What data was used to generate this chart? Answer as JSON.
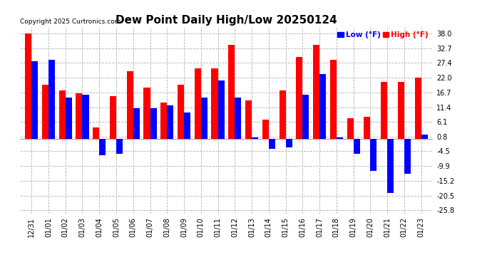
{
  "title": "Dew Point Daily High/Low 20250124",
  "copyright": "Copyright 2025 Curtronics.com",
  "legend_low": "Low (°F)",
  "legend_high": "High (°F)",
  "dates": [
    "12/31",
    "01/01",
    "01/02",
    "01/03",
    "01/04",
    "01/05",
    "01/06",
    "01/07",
    "01/08",
    "01/09",
    "01/10",
    "01/11",
    "01/12",
    "01/13",
    "01/14",
    "01/15",
    "01/16",
    "01/17",
    "01/18",
    "01/19",
    "01/20",
    "01/21",
    "01/22",
    "01/23"
  ],
  "high": [
    38.0,
    19.5,
    17.5,
    16.5,
    4.0,
    15.5,
    24.5,
    18.5,
    13.0,
    19.5,
    25.5,
    25.5,
    34.0,
    14.0,
    7.0,
    17.5,
    29.5,
    34.0,
    28.5,
    7.5,
    8.0,
    20.5,
    20.5,
    22.0
  ],
  "low": [
    28.0,
    28.5,
    15.0,
    16.0,
    -6.0,
    -5.5,
    11.0,
    11.0,
    12.0,
    9.5,
    15.0,
    21.0,
    15.0,
    0.5,
    -3.5,
    -3.0,
    16.0,
    23.5,
    0.5,
    -5.5,
    -11.5,
    -19.5,
    -12.5,
    1.5
  ],
  "ylim": [
    -27.0,
    40.5
  ],
  "yticks": [
    38.0,
    32.7,
    27.4,
    22.0,
    16.7,
    11.4,
    6.1,
    0.8,
    -4.5,
    -9.9,
    -15.2,
    -20.5,
    -25.8
  ],
  "bar_width": 0.38,
  "high_color": "#ff0000",
  "low_color": "#0000ff",
  "bg_color": "#ffffff",
  "grid_color": "#b0b0b0",
  "title_fontsize": 11,
  "tick_fontsize": 7,
  "label_fontsize": 7.5
}
